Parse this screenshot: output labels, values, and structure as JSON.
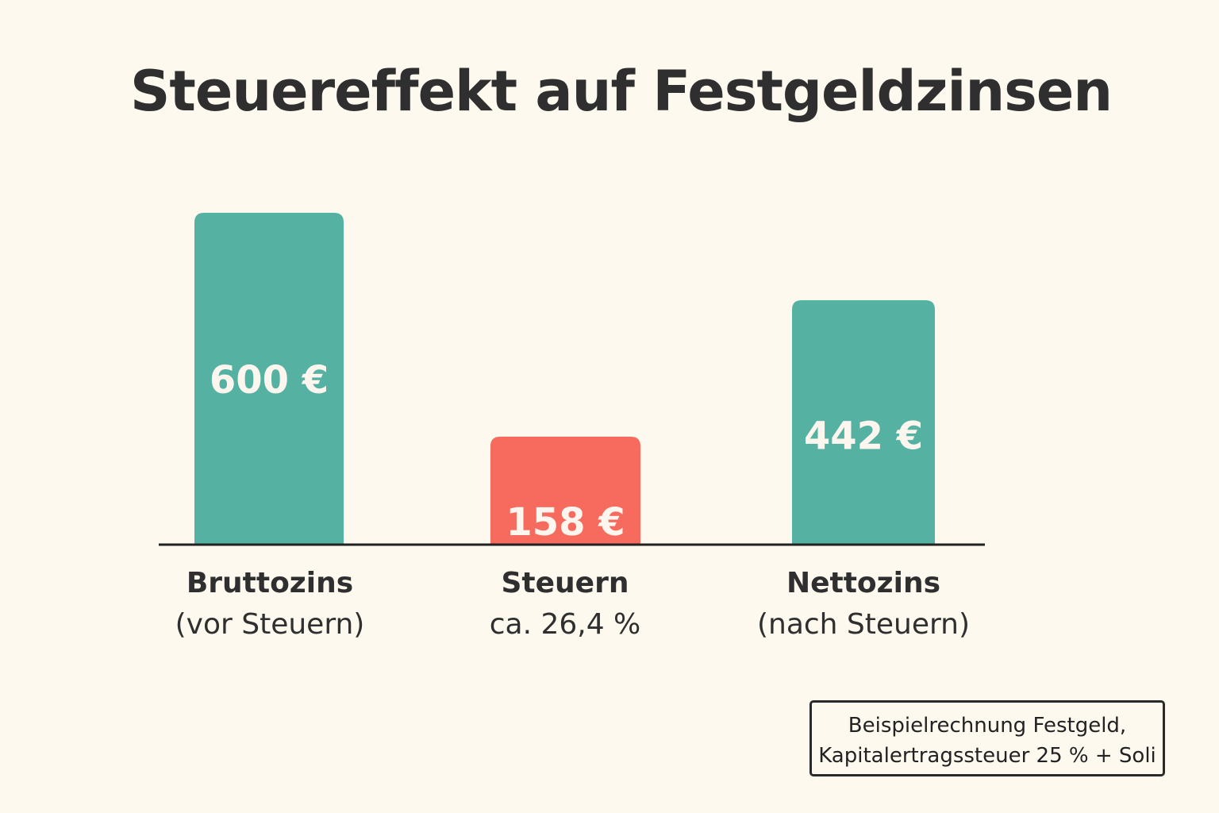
{
  "chart_data": {
    "type": "bar",
    "title": "Steuereffekt auf Festgeldzinsen",
    "categories": [
      "Bruttozins",
      "Steuern",
      "Nettozins"
    ],
    "category_sublabels": [
      "(vor Steuern)",
      "ca. 26,4 %",
      "(nach Steuern)"
    ],
    "values": [
      600,
      158,
      442
    ],
    "value_labels": [
      "600 €",
      "158 €",
      "442 €"
    ],
    "colors": [
      "#55b2a3",
      "#f76b5e",
      "#55b2a3"
    ],
    "xlabel": "",
    "ylabel": "",
    "ylim": [
      0,
      600
    ],
    "grid": false,
    "note": [
      "Beispielrechnung Festgeld,",
      "Kapitalertragssteuer 25 % + Soli"
    ]
  }
}
